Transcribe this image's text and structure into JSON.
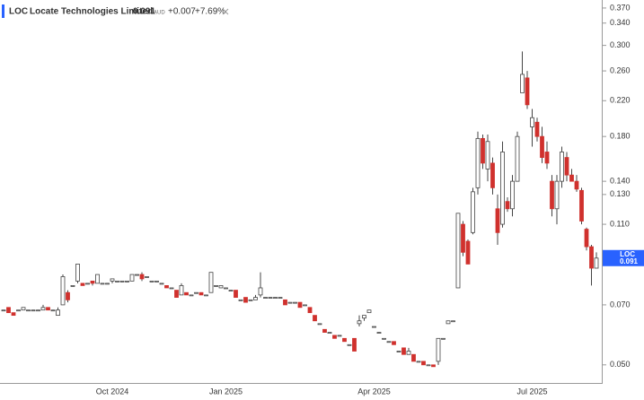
{
  "chart_data": {
    "type": "candlestick",
    "symbol": "LOC",
    "title": "Locate Technologies Limited",
    "last": 0.091,
    "currency": "AUD",
    "change": "+0.007",
    "change_percent": "+7.69%",
    "log_scale": true,
    "grid": false,
    "up_color": "#ffffff",
    "down_color": "#d0312d",
    "edge_color": "#444444",
    "tag_color": "#2962ff",
    "change_color": "#1b7a3e",
    "categories": [
      null,
      null,
      null,
      null,
      null,
      null,
      null,
      null,
      null,
      null,
      null,
      null,
      null,
      null,
      null,
      null,
      null,
      null,
      null,
      null,
      null,
      null,
      "Oct 2024",
      null,
      null,
      null,
      null,
      null,
      null,
      null,
      null,
      null,
      null,
      null,
      null,
      null,
      null,
      null,
      null,
      null,
      null,
      null,
      null,
      null,
      null,
      "Jan 2025",
      null,
      null,
      null,
      null,
      null,
      null,
      null,
      null,
      null,
      null,
      null,
      null,
      null,
      null,
      null,
      null,
      null,
      null,
      null,
      null,
      null,
      null,
      null,
      null,
      null,
      null,
      null,
      null,
      null,
      "Apr 2025",
      null,
      null,
      null,
      null,
      null,
      null,
      null,
      null,
      null,
      null,
      null,
      null,
      null,
      null,
      null,
      null,
      null,
      null,
      null,
      null,
      null,
      null,
      null,
      null,
      null,
      null,
      null,
      null,
      null,
      null,
      null,
      "Jul 2025",
      null,
      null,
      null,
      null,
      null,
      null,
      null,
      null,
      null,
      null,
      null,
      null,
      null
    ],
    "open": [
      0.068,
      0.069,
      0.067,
      0.068,
      0.068,
      0.068,
      0.068,
      0.068,
      0.068,
      0.069,
      0.068,
      0.066,
      0.07,
      0.075,
      0.078,
      0.08,
      0.079,
      0.079,
      0.08,
      0.079,
      0.079,
      0.079,
      0.08,
      0.08,
      0.08,
      0.08,
      0.08,
      0.083,
      0.083,
      0.082,
      0.08,
      0.08,
      0.079,
      0.078,
      0.077,
      0.076,
      0.074,
      0.075,
      0.074,
      0.075,
      0.075,
      0.074,
      0.075,
      0.078,
      0.077,
      0.077,
      0.076,
      0.076,
      0.072,
      0.073,
      0.072,
      0.072,
      0.074,
      0.073,
      0.073,
      0.073,
      0.073,
      0.072,
      0.071,
      0.071,
      0.071,
      0.07,
      0.069,
      0.066,
      0.063,
      0.061,
      0.06,
      0.059,
      0.059,
      0.058,
      0.056,
      0.058,
      0.063,
      0.065,
      0.067,
      0.062,
      0.06,
      0.058,
      0.057,
      0.057,
      0.054,
      0.055,
      0.053,
      0.053,
      0.051,
      0.051,
      0.05,
      0.05,
      0.051,
      0.058,
      0.063,
      0.064,
      0.077,
      0.11,
      0.1,
      0.105,
      0.135,
      0.178,
      0.15,
      0.155,
      0.12,
      0.11,
      0.125,
      0.12,
      0.14,
      0.23,
      0.25,
      0.19,
      0.195,
      0.18,
      0.165,
      0.14,
      0.12,
      0.14,
      0.16,
      0.145,
      0.14,
      0.133,
      0.107,
      0.097,
      0.086
    ],
    "high": [
      0.068,
      0.069,
      0.067,
      0.068,
      0.069,
      0.068,
      0.068,
      0.068,
      0.07,
      0.069,
      0.068,
      0.069,
      0.083,
      0.076,
      0.078,
      0.088,
      0.079,
      0.079,
      0.08,
      0.083,
      0.079,
      0.079,
      0.081,
      0.08,
      0.08,
      0.08,
      0.083,
      0.083,
      0.084,
      0.082,
      0.08,
      0.08,
      0.079,
      0.078,
      0.077,
      0.076,
      0.079,
      0.075,
      0.074,
      0.075,
      0.075,
      0.074,
      0.084,
      0.078,
      0.078,
      0.077,
      0.076,
      0.076,
      0.072,
      0.073,
      0.072,
      0.074,
      0.084,
      0.073,
      0.073,
      0.073,
      0.073,
      0.072,
      0.071,
      0.071,
      0.071,
      0.07,
      0.069,
      0.066,
      0.063,
      0.061,
      0.06,
      0.059,
      0.059,
      0.058,
      0.056,
      0.058,
      0.066,
      0.066,
      0.068,
      0.062,
      0.06,
      0.058,
      0.057,
      0.057,
      0.054,
      0.055,
      0.055,
      0.053,
      0.051,
      0.051,
      0.05,
      0.05,
      0.058,
      0.058,
      0.064,
      0.064,
      0.117,
      0.112,
      0.101,
      0.135,
      0.185,
      0.182,
      0.182,
      0.16,
      0.13,
      0.175,
      0.128,
      0.145,
      0.185,
      0.29,
      0.26,
      0.21,
      0.2,
      0.19,
      0.175,
      0.145,
      0.145,
      0.17,
      0.165,
      0.15,
      0.145,
      0.135,
      0.108,
      0.098,
      0.094
    ],
    "low": [
      0.068,
      0.067,
      0.066,
      0.068,
      0.068,
      0.068,
      0.068,
      0.068,
      0.068,
      0.068,
      0.068,
      0.066,
      0.07,
      0.071,
      0.078,
      0.079,
      0.078,
      0.079,
      0.078,
      0.079,
      0.079,
      0.079,
      0.079,
      0.08,
      0.08,
      0.08,
      0.08,
      0.083,
      0.08,
      0.082,
      0.08,
      0.08,
      0.079,
      0.077,
      0.077,
      0.073,
      0.074,
      0.074,
      0.074,
      0.075,
      0.074,
      0.074,
      0.075,
      0.078,
      0.077,
      0.077,
      0.076,
      0.073,
      0.072,
      0.071,
      0.072,
      0.072,
      0.073,
      0.073,
      0.073,
      0.073,
      0.073,
      0.07,
      0.071,
      0.071,
      0.069,
      0.07,
      0.067,
      0.064,
      0.063,
      0.06,
      0.06,
      0.058,
      0.059,
      0.057,
      0.056,
      0.054,
      0.062,
      0.064,
      0.067,
      0.062,
      0.06,
      0.058,
      0.057,
      0.056,
      0.054,
      0.053,
      0.053,
      0.051,
      0.051,
      0.05,
      0.05,
      0.0495,
      0.05,
      0.058,
      0.063,
      0.064,
      0.077,
      0.092,
      0.088,
      0.104,
      0.13,
      0.15,
      0.14,
      0.13,
      0.098,
      0.108,
      0.118,
      0.115,
      0.14,
      0.23,
      0.21,
      0.17,
      0.175,
      0.155,
      0.15,
      0.115,
      0.11,
      0.135,
      0.14,
      0.14,
      0.132,
      0.11,
      0.095,
      0.078,
      0.086
    ],
    "close": [
      0.068,
      0.067,
      0.066,
      0.068,
      0.069,
      0.068,
      0.068,
      0.068,
      0.069,
      0.068,
      0.068,
      0.068,
      0.082,
      0.072,
      0.078,
      0.088,
      0.078,
      0.079,
      0.079,
      0.083,
      0.079,
      0.079,
      0.081,
      0.08,
      0.08,
      0.08,
      0.083,
      0.083,
      0.081,
      0.082,
      0.08,
      0.08,
      0.079,
      0.077,
      0.077,
      0.073,
      0.078,
      0.074,
      0.074,
      0.075,
      0.074,
      0.074,
      0.084,
      0.078,
      0.078,
      0.077,
      0.076,
      0.073,
      0.072,
      0.071,
      0.072,
      0.073,
      0.077,
      0.073,
      0.073,
      0.073,
      0.073,
      0.07,
      0.071,
      0.071,
      0.069,
      0.07,
      0.067,
      0.064,
      0.063,
      0.06,
      0.06,
      0.058,
      0.059,
      0.057,
      0.056,
      0.054,
      0.064,
      0.066,
      0.068,
      0.062,
      0.06,
      0.058,
      0.057,
      0.056,
      0.054,
      0.053,
      0.054,
      0.051,
      0.051,
      0.05,
      0.05,
      0.0495,
      0.058,
      0.058,
      0.064,
      0.064,
      0.117,
      0.094,
      0.088,
      0.132,
      0.178,
      0.155,
      0.175,
      0.135,
      0.105,
      0.165,
      0.12,
      0.14,
      0.18,
      0.255,
      0.215,
      0.2,
      0.18,
      0.16,
      0.155,
      0.12,
      0.14,
      0.165,
      0.145,
      0.14,
      0.134,
      0.112,
      0.097,
      0.086,
      0.091
    ],
    "ylim": [
      0.0454,
      0.387
    ],
    "yticks": [
      {
        "value": 0.05,
        "label": "0.050"
      },
      {
        "value": 0.07,
        "label": "0.070"
      },
      {
        "value": 0.11,
        "label": "0.110"
      },
      {
        "value": 0.13,
        "label": "0.130"
      },
      {
        "value": 0.14,
        "label": "0.140"
      },
      {
        "value": 0.18,
        "label": "0.180"
      },
      {
        "value": 0.22,
        "label": "0.220"
      },
      {
        "value": 0.26,
        "label": "0.260"
      },
      {
        "value": 0.3,
        "label": "0.300"
      },
      {
        "value": 0.34,
        "label": "0.340"
      },
      {
        "value": 0.37,
        "label": "0.370"
      }
    ]
  }
}
